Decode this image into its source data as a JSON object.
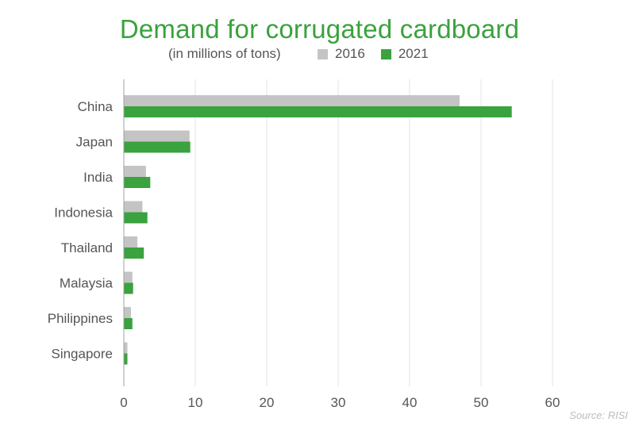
{
  "chart_data": {
    "type": "bar",
    "orientation": "horizontal",
    "title": "Demand for corrugated cardboard",
    "subtitle": "(in millions of tons)",
    "source": "Source: RISI",
    "categories": [
      "China",
      "Japan",
      "India",
      "Indonesia",
      "Thailand",
      "Malaysia",
      "Philippines",
      "Singapore"
    ],
    "series": [
      {
        "name": "2016",
        "color": "#c4c4c4",
        "values": [
          47.0,
          9.2,
          3.1,
          2.6,
          1.9,
          1.2,
          1.0,
          0.5
        ]
      },
      {
        "name": "2021",
        "color": "#3aa23e",
        "values": [
          54.3,
          9.3,
          3.7,
          3.3,
          2.8,
          1.3,
          1.2,
          0.5
        ]
      }
    ],
    "xlim": [
      0,
      60
    ],
    "xticks": [
      0,
      10,
      20,
      30,
      40,
      50,
      60
    ],
    "grid": true,
    "legend_position": "top"
  }
}
